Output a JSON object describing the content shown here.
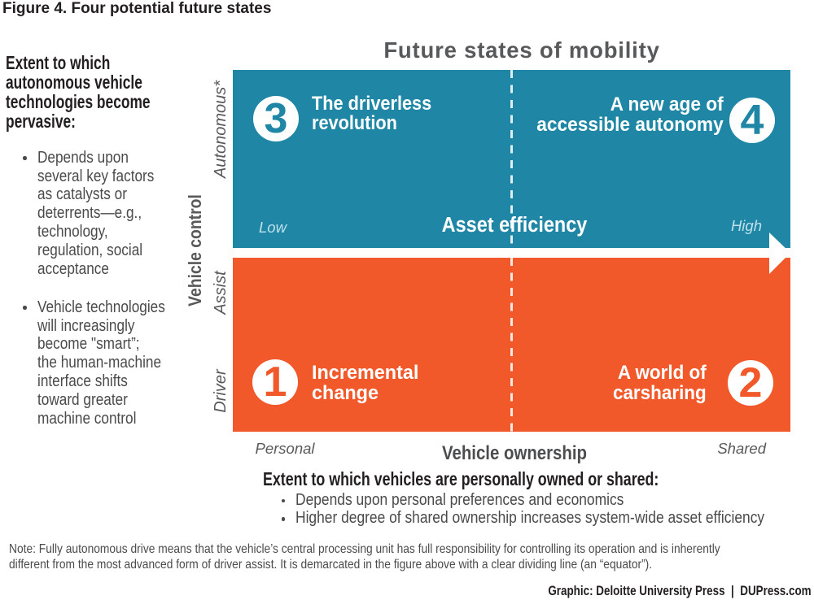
{
  "figure": {
    "title": "Figure 4. Four potential future states"
  },
  "chart": {
    "title": "Future states of mobility"
  },
  "sidebar": {
    "heading": "Extent to which\nautonomous vehicle\ntechnologies become\npervasive:",
    "bullets": [
      "Depends upon\nseveral key factors\nas catalysts or\ndeterrents—e.g.,\ntechnology,\nregulation, social\nacceptance",
      "Vehicle technologies\nwill increasingly\nbecome \"smart”;\nthe human-machine\ninterface shifts\ntoward greater\nmachine control"
    ]
  },
  "matrix": {
    "teal_color": "#1f87a5",
    "orange_color": "#f1592b",
    "dash_color": "rgba(255,255,255,0.85)",
    "pale_label_color": "#bfe0eb",
    "quadrants": {
      "q3": {
        "number": "3",
        "title": "The driverless\nrevolution"
      },
      "q4": {
        "number": "4",
        "title": "A new age of\naccessible autonomy"
      },
      "q1": {
        "number": "1",
        "title": "Incremental\nchange"
      },
      "q2": {
        "number": "2",
        "title": "A world of\ncarsharing"
      }
    },
    "efficiency_axis": {
      "label": "Asset efficiency",
      "low": "Low",
      "high": "High"
    },
    "y_axis": {
      "label": "Vehicle control",
      "top": "Autonomous*",
      "middle": "Assist",
      "bottom": "Driver"
    },
    "x_axis": {
      "label": "Vehicle ownership",
      "left": "Personal",
      "right": "Shared"
    }
  },
  "ownership": {
    "heading": "Extent to which vehicles are personally owned or shared:",
    "bullets": [
      "Depends upon personal preferences and economics",
      "Higher degree of shared ownership increases system-wide asset efficiency"
    ]
  },
  "footnote": "Note: Fully autonomous drive means that the vehicle’s central processing unit has full responsibility for controlling its operation and is inherently\ndifferent from the most advanced form of driver assist. It is demarcated in the figure above with a clear dividing line (an “equator”).",
  "credit": "Graphic: Deloitte University Press  |  DUPress.com"
}
